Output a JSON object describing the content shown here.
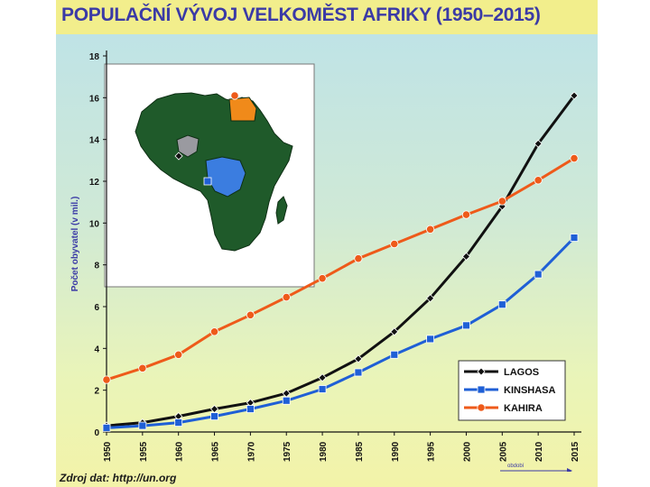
{
  "page": {
    "title": "POPULAČNÍ VÝVOJ VELKOMĚST AFRIKY (1950–2015)",
    "source": "Zdroj dat: http://un.org"
  },
  "colors": {
    "title_text": "#3b3aa6",
    "title_bar": "#f2ee8c",
    "lagos": "#111111",
    "kinshasa": "#1f5fd6",
    "kahira": "#ee5a1a",
    "map_land": "#1f5a2a",
    "map_lagos_region": "#9a9aa0",
    "map_kinshasa_region": "#3b7de0",
    "map_kahira_region": "#f08a1a"
  },
  "chart_data": {
    "type": "line",
    "ylabel": "Počet obyvatel (v mil.)",
    "xlabel": "",
    "x_axis_arrow_label": "období",
    "ylim": [
      0,
      18
    ],
    "yticks": [
      0,
      2,
      4,
      6,
      8,
      10,
      12,
      14,
      16,
      18
    ],
    "x": [
      "1950",
      "1955",
      "1960",
      "1965",
      "1970",
      "1975",
      "1980",
      "1985",
      "1990",
      "1995",
      "2000",
      "2005",
      "2010",
      "2015"
    ],
    "grid": false,
    "legend_position": "bottom-right",
    "series": [
      {
        "name": "LAGOS",
        "color_key": "lagos",
        "marker": "diamond",
        "values": [
          0.3,
          0.45,
          0.75,
          1.1,
          1.4,
          1.85,
          2.6,
          3.5,
          4.8,
          6.4,
          8.4,
          10.8,
          13.8,
          16.1
        ]
      },
      {
        "name": "KINSHASA",
        "color_key": "kinshasa",
        "marker": "square",
        "values": [
          0.2,
          0.3,
          0.45,
          0.75,
          1.1,
          1.5,
          2.05,
          2.85,
          3.7,
          4.45,
          5.1,
          6.1,
          7.55,
          9.3
        ]
      },
      {
        "name": "KAHIRA",
        "color_key": "kahira",
        "marker": "circle",
        "values": [
          2.5,
          3.05,
          3.7,
          4.8,
          5.6,
          6.45,
          7.35,
          8.3,
          9.0,
          9.7,
          10.4,
          11.05,
          12.05,
          13.1
        ]
      }
    ]
  }
}
